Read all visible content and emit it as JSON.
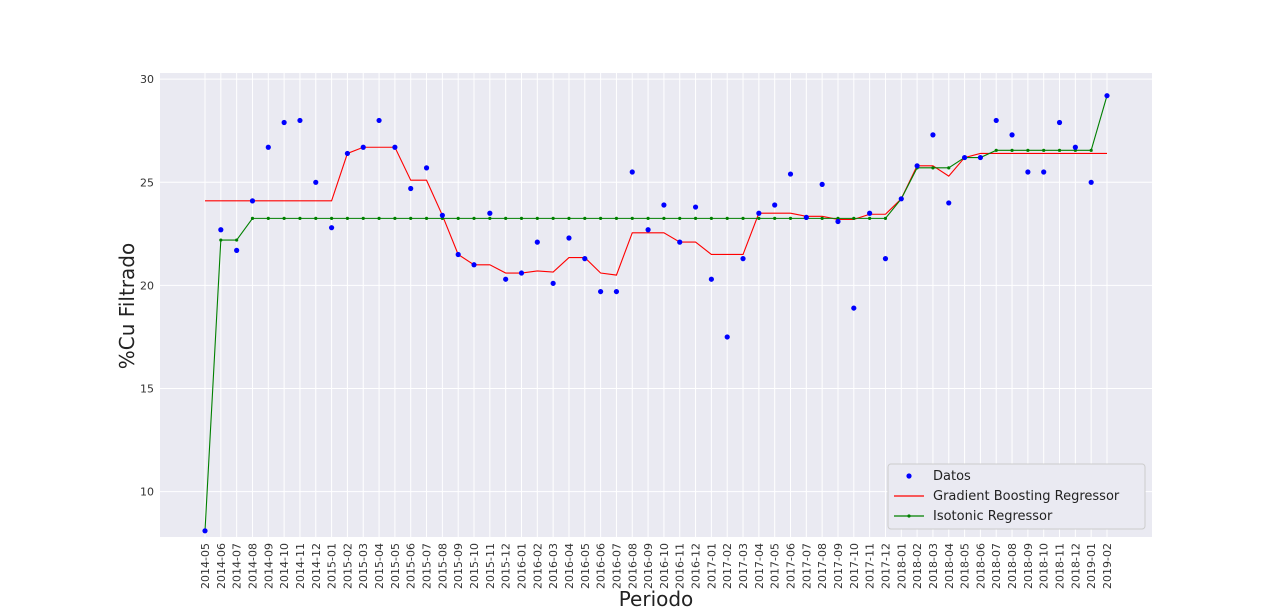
{
  "chart_data": {
    "type": "line",
    "xlabel": "Periodo",
    "ylabel": "%Cu Filtrado",
    "ylim": [
      7.8,
      30.3
    ],
    "yticks": [
      10,
      15,
      20,
      25,
      30
    ],
    "grid": true,
    "legend_position": "bottom-right",
    "categories": [
      "2014-05",
      "2014-06",
      "2014-07",
      "2014-08",
      "2014-09",
      "2014-10",
      "2014-11",
      "2014-12",
      "2015-01",
      "2015-02",
      "2015-03",
      "2015-04",
      "2015-05",
      "2015-06",
      "2015-07",
      "2015-08",
      "2015-09",
      "2015-10",
      "2015-11",
      "2015-12",
      "2016-01",
      "2016-02",
      "2016-03",
      "2016-04",
      "2016-05",
      "2016-06",
      "2016-07",
      "2016-08",
      "2016-09",
      "2016-10",
      "2016-11",
      "2016-12",
      "2017-01",
      "2017-02",
      "2017-03",
      "2017-04",
      "2017-05",
      "2017-06",
      "2017-07",
      "2017-08",
      "2017-09",
      "2017-10",
      "2017-11",
      "2017-12",
      "2018-01",
      "2018-02",
      "2018-03",
      "2018-04",
      "2018-05",
      "2018-06",
      "2018-07",
      "2018-08",
      "2018-09",
      "2018-10",
      "2018-11",
      "2018-12",
      "2019-01",
      "2019-02"
    ],
    "series": [
      {
        "name": "Datos",
        "style": "markers",
        "color": "#0000ff",
        "values": [
          8.1,
          22.7,
          21.7,
          24.1,
          26.7,
          27.9,
          28.0,
          25.0,
          22.8,
          26.4,
          26.7,
          28.0,
          26.7,
          24.7,
          25.7,
          23.4,
          21.5,
          21.0,
          23.5,
          20.3,
          20.6,
          22.1,
          20.1,
          22.3,
          21.3,
          19.7,
          19.7,
          25.5,
          22.7,
          23.9,
          22.1,
          23.8,
          20.3,
          17.5,
          21.3,
          23.5,
          23.9,
          25.4,
          23.3,
          24.9,
          23.1,
          18.9,
          23.5,
          21.3,
          24.2,
          25.8,
          27.3,
          24.0,
          26.2,
          26.2,
          28.0,
          27.3,
          25.5,
          25.5,
          27.9,
          26.7,
          25.0,
          29.2
        ]
      },
      {
        "name": "Gradient Boosting Regressor",
        "style": "line",
        "color": "#ff0000",
        "values": [
          24.1,
          24.1,
          24.1,
          24.1,
          24.1,
          24.1,
          24.1,
          24.1,
          24.1,
          26.4,
          26.7,
          26.7,
          26.7,
          25.1,
          25.1,
          23.4,
          21.5,
          21.0,
          21.0,
          20.6,
          20.6,
          20.7,
          20.65,
          21.35,
          21.35,
          20.6,
          20.5,
          22.55,
          22.55,
          22.55,
          22.1,
          22.1,
          21.5,
          21.5,
          21.5,
          23.5,
          23.5,
          23.5,
          23.35,
          23.35,
          23.2,
          23.2,
          23.45,
          23.45,
          24.2,
          25.8,
          25.8,
          25.3,
          26.2,
          26.4,
          26.4,
          26.4,
          26.4,
          26.4,
          26.4,
          26.4,
          26.4,
          26.4
        ]
      },
      {
        "name": "Isotonic Regressor",
        "style": "line-markers",
        "color": "#008000",
        "values": [
          8.1,
          22.2,
          22.2,
          23.25,
          23.25,
          23.25,
          23.25,
          23.25,
          23.25,
          23.25,
          23.25,
          23.25,
          23.25,
          23.25,
          23.25,
          23.25,
          23.25,
          23.25,
          23.25,
          23.25,
          23.25,
          23.25,
          23.25,
          23.25,
          23.25,
          23.25,
          23.25,
          23.25,
          23.25,
          23.25,
          23.25,
          23.25,
          23.25,
          23.25,
          23.25,
          23.25,
          23.25,
          23.25,
          23.25,
          23.25,
          23.25,
          23.25,
          23.25,
          23.25,
          24.2,
          25.7,
          25.7,
          25.7,
          26.2,
          26.2,
          26.55,
          26.55,
          26.55,
          26.55,
          26.55,
          26.55,
          26.55,
          29.2
        ]
      }
    ]
  },
  "colors": {
    "plot_background": "#eaeaf2",
    "grid": "#ffffff"
  }
}
